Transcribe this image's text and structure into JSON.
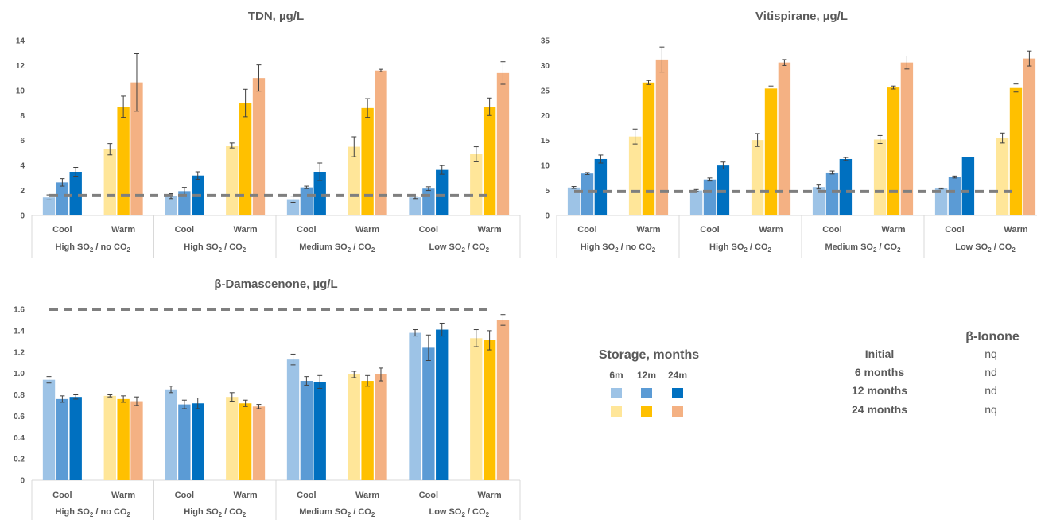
{
  "chart_data": [
    {
      "type": "bar",
      "title": "TDN, µg/L",
      "ylim": [
        0,
        14
      ],
      "yticks": [
        0,
        2,
        4,
        6,
        8,
        10,
        12,
        14
      ],
      "reference_line": 1.6,
      "groups": [
        "High SO2 / no CO2",
        "High SO2 / CO2",
        "Medium SO2 / CO2",
        "Low SO2 / CO2"
      ],
      "categories": [
        "Cool",
        "Warm"
      ],
      "values": [
        [
          [
            1.45,
            2.65,
            3.5
          ],
          [
            5.3,
            8.7,
            10.65
          ]
        ],
        [
          [
            1.55,
            1.95,
            3.2
          ],
          [
            5.6,
            9.0,
            11.0
          ]
        ],
        [
          [
            1.3,
            2.25,
            3.5
          ],
          [
            5.5,
            8.6,
            11.6
          ]
        ],
        [
          [
            1.45,
            2.15,
            3.65
          ],
          [
            4.9,
            8.7,
            11.4
          ]
        ]
      ],
      "errors": [
        [
          [
            0.2,
            0.3,
            0.35
          ],
          [
            0.45,
            0.85,
            2.3
          ]
        ],
        [
          [
            0.2,
            0.3,
            0.3
          ],
          [
            0.2,
            1.1,
            1.05
          ]
        ],
        [
          [
            0.25,
            0.1,
            0.7
          ],
          [
            0.8,
            0.75,
            0.1
          ]
        ],
        [
          [
            0.1,
            0.15,
            0.35
          ],
          [
            0.6,
            0.7,
            0.9
          ]
        ]
      ]
    },
    {
      "type": "bar",
      "title": "Vitispirane, µg/L",
      "ylim": [
        0,
        35
      ],
      "yticks": [
        0,
        5,
        10,
        15,
        20,
        25,
        30,
        35
      ],
      "reference_line": 4.8,
      "groups": [
        "High SO2 / no CO2",
        "High SO2 / CO2",
        "Medium SO2 / CO2",
        "Low SO2 / CO2"
      ],
      "categories": [
        "Cool",
        "Warm"
      ],
      "values": [
        [
          [
            5.6,
            8.4,
            11.3
          ],
          [
            15.8,
            26.6,
            31.2
          ]
        ],
        [
          [
            5.0,
            7.2,
            10.0
          ],
          [
            15.1,
            25.4,
            30.6
          ]
        ],
        [
          [
            5.7,
            8.6,
            11.3
          ],
          [
            15.2,
            25.6,
            30.6
          ]
        ],
        [
          [
            5.4,
            7.7,
            11.7
          ],
          [
            15.5,
            25.5,
            31.4
          ]
        ]
      ],
      "errors": [
        [
          [
            0.2,
            0.2,
            0.8
          ],
          [
            1.5,
            0.4,
            2.5
          ]
        ],
        [
          [
            0.2,
            0.3,
            0.7
          ],
          [
            1.3,
            0.5,
            0.6
          ]
        ],
        [
          [
            0.4,
            0.3,
            0.3
          ],
          [
            0.8,
            0.3,
            1.3
          ]
        ],
        [
          [
            0.1,
            0.2,
            0.0
          ],
          [
            1.0,
            0.8,
            1.5
          ]
        ]
      ]
    },
    {
      "type": "bar",
      "title": "β-Damascenone, µg/L",
      "ylim": [
        0,
        1.6
      ],
      "yticks": [
        "0",
        "0.2",
        "0.4",
        "0.6",
        "0.8",
        "1.0",
        "1.2",
        "1.4",
        "1.6"
      ],
      "reference_line": 1.6,
      "groups": [
        "High SO2 / no CO2",
        "High SO2 / CO2",
        "Medium SO2 / CO2",
        "Low SO2 / CO2"
      ],
      "categories": [
        "Cool",
        "Warm"
      ],
      "values": [
        [
          [
            0.94,
            0.76,
            0.78
          ],
          [
            0.79,
            0.76,
            0.74
          ]
        ],
        [
          [
            0.85,
            0.71,
            0.72
          ],
          [
            0.78,
            0.72,
            0.69
          ]
        ],
        [
          [
            1.13,
            0.93,
            0.92
          ],
          [
            0.99,
            0.93,
            0.99
          ]
        ],
        [
          [
            1.38,
            1.24,
            1.41
          ],
          [
            1.33,
            1.31,
            1.5
          ]
        ]
      ],
      "errors": [
        [
          [
            0.03,
            0.03,
            0.02
          ],
          [
            0.01,
            0.03,
            0.04
          ]
        ],
        [
          [
            0.03,
            0.04,
            0.05
          ],
          [
            0.04,
            0.03,
            0.02
          ]
        ],
        [
          [
            0.05,
            0.04,
            0.06
          ],
          [
            0.03,
            0.05,
            0.06
          ]
        ],
        [
          [
            0.03,
            0.12,
            0.06
          ],
          [
            0.08,
            0.09,
            0.05
          ]
        ]
      ]
    }
  ],
  "colors": {
    "cool": [
      "#9DC3E6",
      "#5B9BD5",
      "#0070C0"
    ],
    "warm": [
      "#FFE699",
      "#FFC000",
      "#F4B183"
    ],
    "reference_line": "#7F7F7F",
    "text": "#595959",
    "axis": "#D9D9D9"
  },
  "group_labels": [
    {
      "pre": "High SO",
      "mid": " / no CO",
      "post": ""
    },
    {
      "pre": "High SO",
      "mid": " / CO",
      "post": ""
    },
    {
      "pre": "Medium SO",
      "mid": " / CO",
      "post": ""
    },
    {
      "pre": "Low SO",
      "mid": " / CO",
      "post": ""
    }
  ],
  "subscript": "2",
  "legend": {
    "title": "Storage, months",
    "labels": [
      "6m",
      "12m",
      "24m"
    ]
  },
  "ionone": {
    "title": "β-Ionone",
    "rows": [
      {
        "label": "Initial",
        "value": "nq"
      },
      {
        "label": "6 months",
        "value": "nd"
      },
      {
        "label": "12 months",
        "value": "nd"
      },
      {
        "label": "24 months",
        "value": "nq"
      }
    ]
  }
}
